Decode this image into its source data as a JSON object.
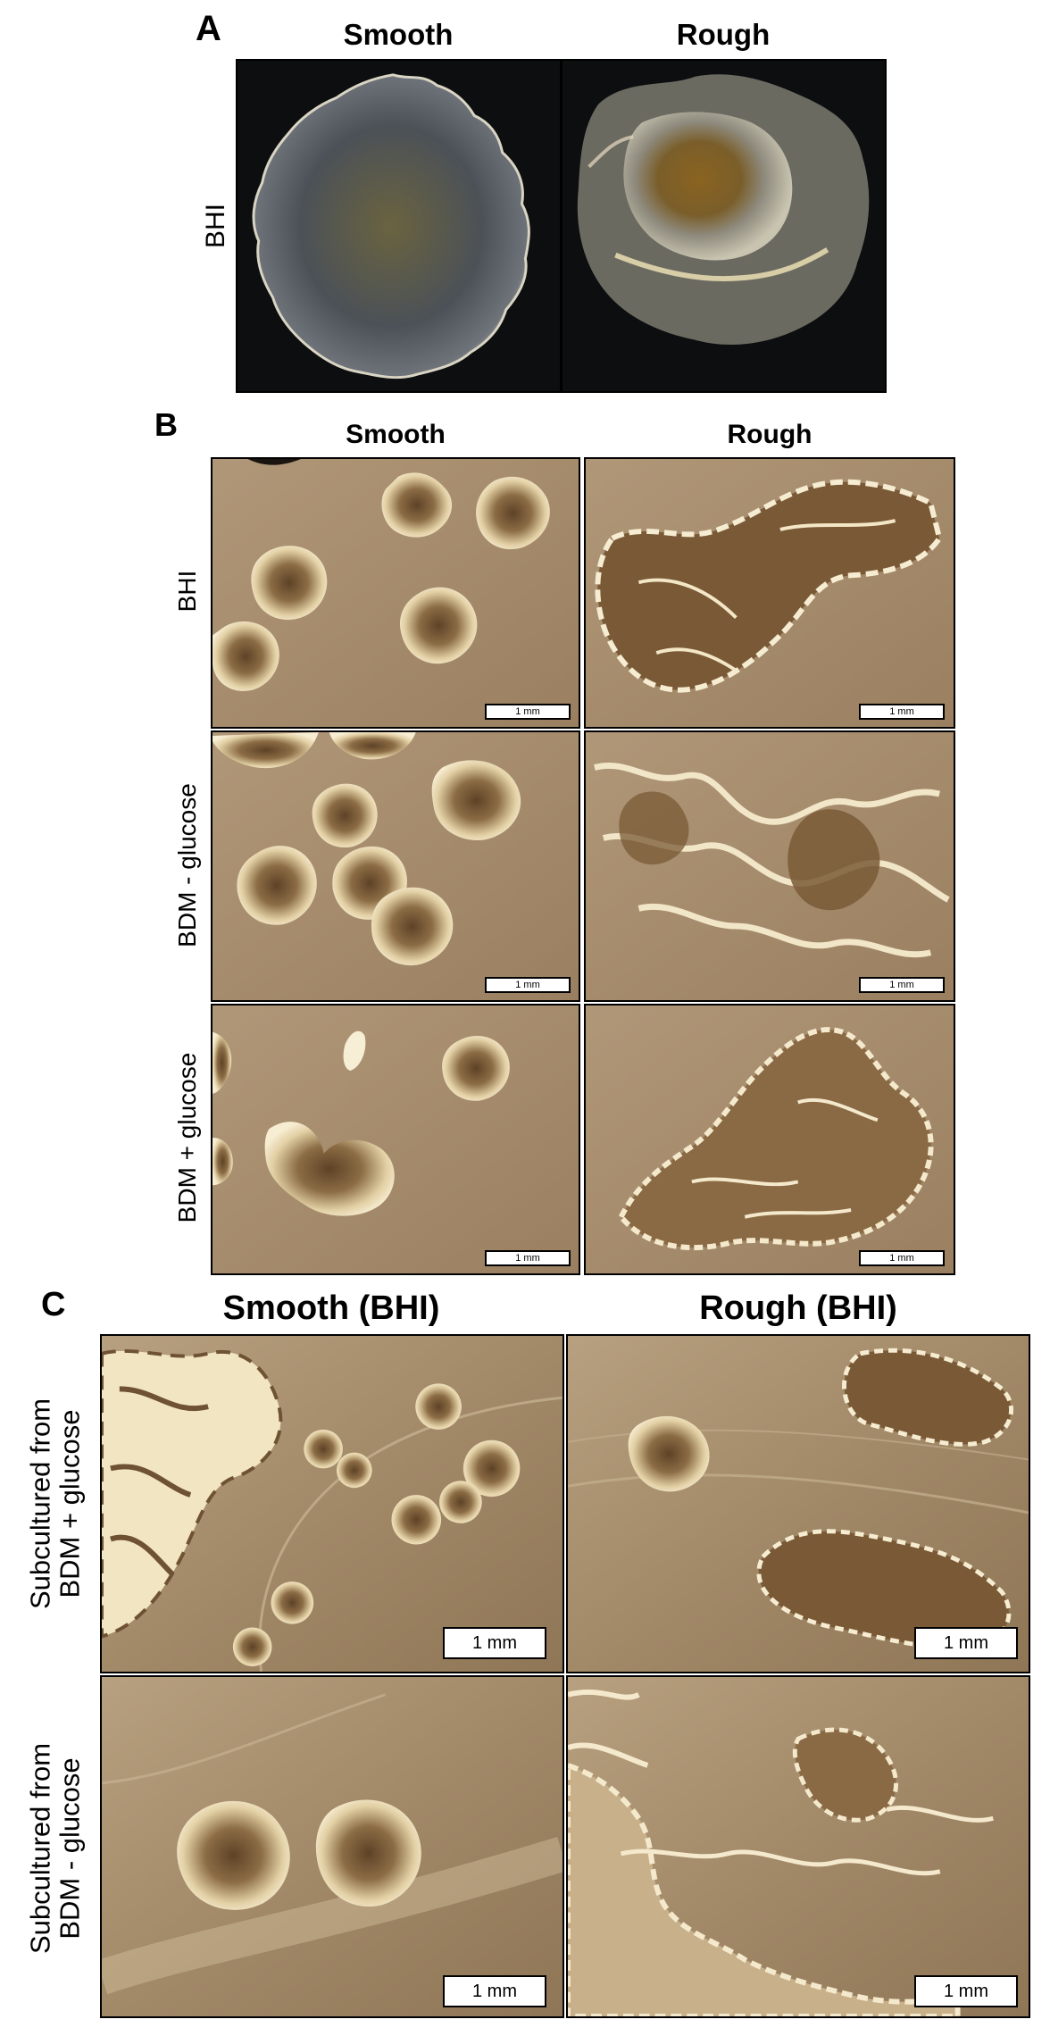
{
  "panel_a": {
    "letter": "A",
    "col_smooth": "Smooth",
    "col_rough": "Rough",
    "row_label": "BHI"
  },
  "panel_b": {
    "letter": "B",
    "col_smooth": "Smooth",
    "col_rough": "Rough",
    "rows": [
      "BHI",
      "BDM - glucose",
      "BDM + glucose"
    ],
    "scale_bar": "1 mm"
  },
  "panel_c": {
    "letter": "C",
    "col_smooth": "Smooth (BHI)",
    "col_rough": "Rough (BHI)",
    "rows": [
      {
        "line1": "Subcultured from",
        "line2": "BDM + glucose"
      },
      {
        "line1": "Subcultured from",
        "line2": "BDM - glucose"
      }
    ],
    "scale_bar": "1 mm"
  },
  "colors": {
    "plate_background": "#a68d6b",
    "colony_light": "#f4e7c4",
    "colony_core": "#6b4e2c",
    "dark_background": "#0c0e0f"
  }
}
